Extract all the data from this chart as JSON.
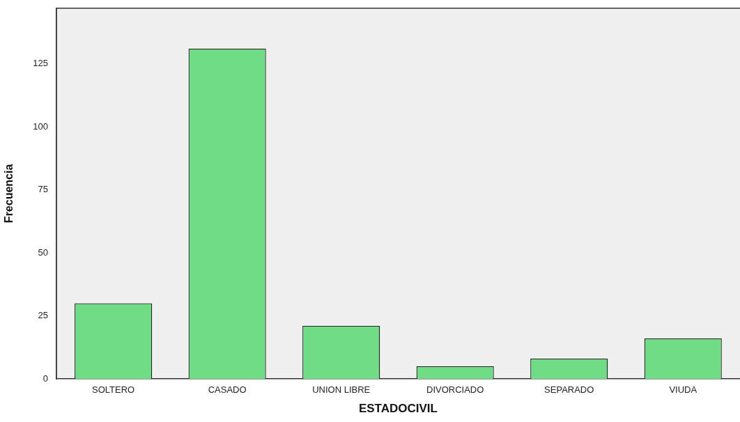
{
  "chart_data": {
    "type": "bar",
    "xlabel": "ESTADOCIVIL",
    "ylabel": "Frecuencia",
    "categories": [
      "SOLTERO",
      "CASADO",
      "UNION LIBRE",
      "DIVORCIADO",
      "SEPARADO",
      "VIUDA"
    ],
    "values": [
      30,
      131,
      21,
      5,
      8,
      16
    ],
    "color": "#71dc86",
    "ylim": [
      0,
      147
    ],
    "yticks": [
      0,
      25,
      50,
      75,
      100,
      125
    ],
    "grid": false,
    "legend": false
  }
}
